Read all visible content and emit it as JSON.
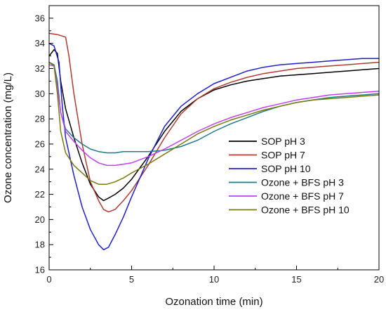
{
  "chart_data": {
    "type": "line",
    "title": "",
    "xlabel": "Ozonation time (min)",
    "ylabel": "Ozone concentration (mg/L)",
    "xlim": [
      0,
      20
    ],
    "ylim": [
      16,
      37
    ],
    "xticks": [
      0,
      5,
      10,
      15,
      20
    ],
    "yticks": [
      16,
      18,
      20,
      22,
      24,
      26,
      28,
      30,
      32,
      34,
      36
    ],
    "grid": false,
    "legend_position": "center-right",
    "series": [
      {
        "name": "SOP pH 3",
        "color": "#000000",
        "x": [
          0,
          0.3,
          0.5,
          0.7,
          1.0,
          1.5,
          2.0,
          2.5,
          3.0,
          3.3,
          3.6,
          4.0,
          4.5,
          5.0,
          6.0,
          7.0,
          8.0,
          9.0,
          10.0,
          11.0,
          12.0,
          13.0,
          14.0,
          15.0,
          16.0,
          17.0,
          18.0,
          19.0,
          20.0
        ],
        "y": [
          33.0,
          33.5,
          33.2,
          31.0,
          28.8,
          26.5,
          24.5,
          22.8,
          21.8,
          21.5,
          21.7,
          22.0,
          22.5,
          23.2,
          25.0,
          27.0,
          28.6,
          29.6,
          30.3,
          30.7,
          31.0,
          31.2,
          31.4,
          31.5,
          31.6,
          31.7,
          31.8,
          31.9,
          32.0
        ]
      },
      {
        "name": "SOP pH 7",
        "color": "#b03a2e",
        "x": [
          0,
          0.5,
          1.0,
          1.2,
          1.5,
          2.0,
          2.5,
          3.0,
          3.3,
          3.6,
          4.0,
          4.5,
          5.0,
          6.0,
          7.0,
          8.0,
          9.0,
          10.0,
          11.0,
          12.0,
          13.0,
          14.0,
          15.0,
          16.0,
          17.0,
          18.0,
          19.0,
          20.0
        ],
        "y": [
          34.8,
          34.7,
          34.5,
          33.0,
          30.0,
          26.0,
          23.0,
          21.5,
          20.8,
          20.6,
          20.8,
          21.5,
          22.3,
          24.3,
          26.5,
          28.4,
          29.6,
          30.4,
          30.9,
          31.3,
          31.6,
          31.8,
          32.0,
          32.1,
          32.2,
          32.3,
          32.4,
          32.5
        ]
      },
      {
        "name": "SOP pH 10",
        "color": "#1f1fcc",
        "x": [
          0,
          0.3,
          0.6,
          0.8,
          1.0,
          1.5,
          2.0,
          2.5,
          3.0,
          3.3,
          3.6,
          4.0,
          4.5,
          5.0,
          5.5,
          6.0,
          7.0,
          8.0,
          9.0,
          10.0,
          11.0,
          12.0,
          13.0,
          14.0,
          15.0,
          16.0,
          17.0,
          18.0,
          19.0,
          20.0
        ],
        "y": [
          34.0,
          33.8,
          32.5,
          29.0,
          26.5,
          23.5,
          21.0,
          19.2,
          18.0,
          17.6,
          17.8,
          18.8,
          20.2,
          21.8,
          23.3,
          24.8,
          27.4,
          29.0,
          30.0,
          30.8,
          31.3,
          31.8,
          32.1,
          32.3,
          32.4,
          32.5,
          32.6,
          32.7,
          32.8,
          32.8
        ]
      },
      {
        "name": "Ozone + BFS pH 3",
        "color": "#1f7a8c",
        "x": [
          0,
          0.3,
          0.5,
          0.7,
          1.0,
          1.5,
          2.0,
          2.5,
          3.0,
          3.5,
          4.0,
          4.5,
          5.0,
          6.0,
          7.0,
          8.0,
          9.0,
          10.0,
          11.0,
          12.0,
          13.0,
          14.0,
          15.0,
          16.0,
          17.0,
          18.0,
          19.0,
          20.0
        ],
        "y": [
          32.5,
          32.3,
          31.0,
          28.5,
          27.2,
          26.5,
          26.0,
          25.6,
          25.4,
          25.3,
          25.3,
          25.4,
          25.4,
          25.4,
          25.5,
          25.8,
          26.3,
          27.0,
          27.6,
          28.1,
          28.6,
          29.0,
          29.3,
          29.5,
          29.7,
          29.8,
          29.9,
          30.0
        ]
      },
      {
        "name": "Ozone + BFS pH 7",
        "color": "#c040ee",
        "x": [
          0,
          0.3,
          0.5,
          0.7,
          1.0,
          1.5,
          2.0,
          2.5,
          3.0,
          3.5,
          4.0,
          4.5,
          5.0,
          6.0,
          7.0,
          8.0,
          9.0,
          10.0,
          11.0,
          12.0,
          13.0,
          14.0,
          15.0,
          16.0,
          17.0,
          18.0,
          19.0,
          20.0
        ],
        "y": [
          32.3,
          32.2,
          30.5,
          28.5,
          27.0,
          26.2,
          25.5,
          24.9,
          24.5,
          24.3,
          24.3,
          24.4,
          24.5,
          25.0,
          25.6,
          26.3,
          27.0,
          27.6,
          28.1,
          28.5,
          28.9,
          29.2,
          29.5,
          29.7,
          29.9,
          30.0,
          30.1,
          30.2
        ]
      },
      {
        "name": "Ozone + BFS pH 10",
        "color": "#7a7a10",
        "x": [
          0,
          0.3,
          0.5,
          0.7,
          1.0,
          1.5,
          2.0,
          2.5,
          3.0,
          3.5,
          4.0,
          4.5,
          5.0,
          6.0,
          7.0,
          8.0,
          9.0,
          10.0,
          11.0,
          12.0,
          13.0,
          14.0,
          15.0,
          16.0,
          17.0,
          18.0,
          19.0,
          20.0
        ],
        "y": [
          32.5,
          32.2,
          30.0,
          27.0,
          25.3,
          24.3,
          23.7,
          23.1,
          22.8,
          22.8,
          23.0,
          23.3,
          23.7,
          24.4,
          25.2,
          26.0,
          26.8,
          27.4,
          27.9,
          28.3,
          28.7,
          29.0,
          29.3,
          29.5,
          29.6,
          29.7,
          29.8,
          29.9
        ]
      }
    ]
  }
}
